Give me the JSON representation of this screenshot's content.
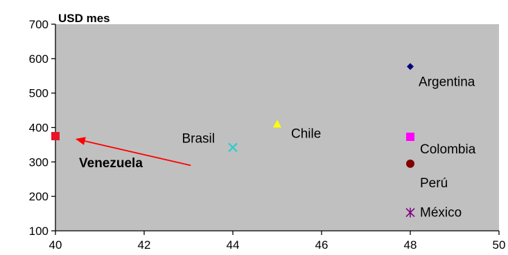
{
  "chart_data": {
    "type": "scatter",
    "title": "",
    "xlabel": "",
    "ylabel": "USD mes",
    "xlim": [
      40,
      50
    ],
    "ylim": [
      100,
      700
    ],
    "xticks": [
      40,
      42,
      44,
      46,
      48,
      50
    ],
    "yticks": [
      100,
      200,
      300,
      400,
      500,
      600,
      700
    ],
    "grid": false,
    "legend": "none",
    "plot_background": "#c0c0c0",
    "points": [
      {
        "label": "Venezuela",
        "x": 40,
        "y": 375,
        "marker": "square",
        "color": "#e8142a",
        "bold": true
      },
      {
        "label": "Brasil",
        "x": 44,
        "y": 342,
        "marker": "x",
        "color": "#33cccc",
        "bold": false
      },
      {
        "label": "Chile",
        "x": 45,
        "y": 410,
        "marker": "triangle",
        "color": "#ffff00",
        "bold": false
      },
      {
        "label": "Argentina",
        "x": 48,
        "y": 577,
        "marker": "diamond",
        "color": "#000080",
        "bold": false
      },
      {
        "label": "Colombia",
        "x": 48,
        "y": 373,
        "marker": "square",
        "color": "#ff00ff",
        "bold": false
      },
      {
        "label": "Perú",
        "x": 48,
        "y": 295,
        "marker": "circle",
        "color": "#800000",
        "bold": false
      },
      {
        "label": "México",
        "x": 48,
        "y": 153,
        "marker": "star",
        "color": "#800080",
        "bold": false
      }
    ],
    "annotations": [
      {
        "type": "arrow",
        "color": "#ff0000",
        "from": [
          43.05,
          290
        ],
        "to": [
          40.45,
          367
        ]
      }
    ]
  }
}
